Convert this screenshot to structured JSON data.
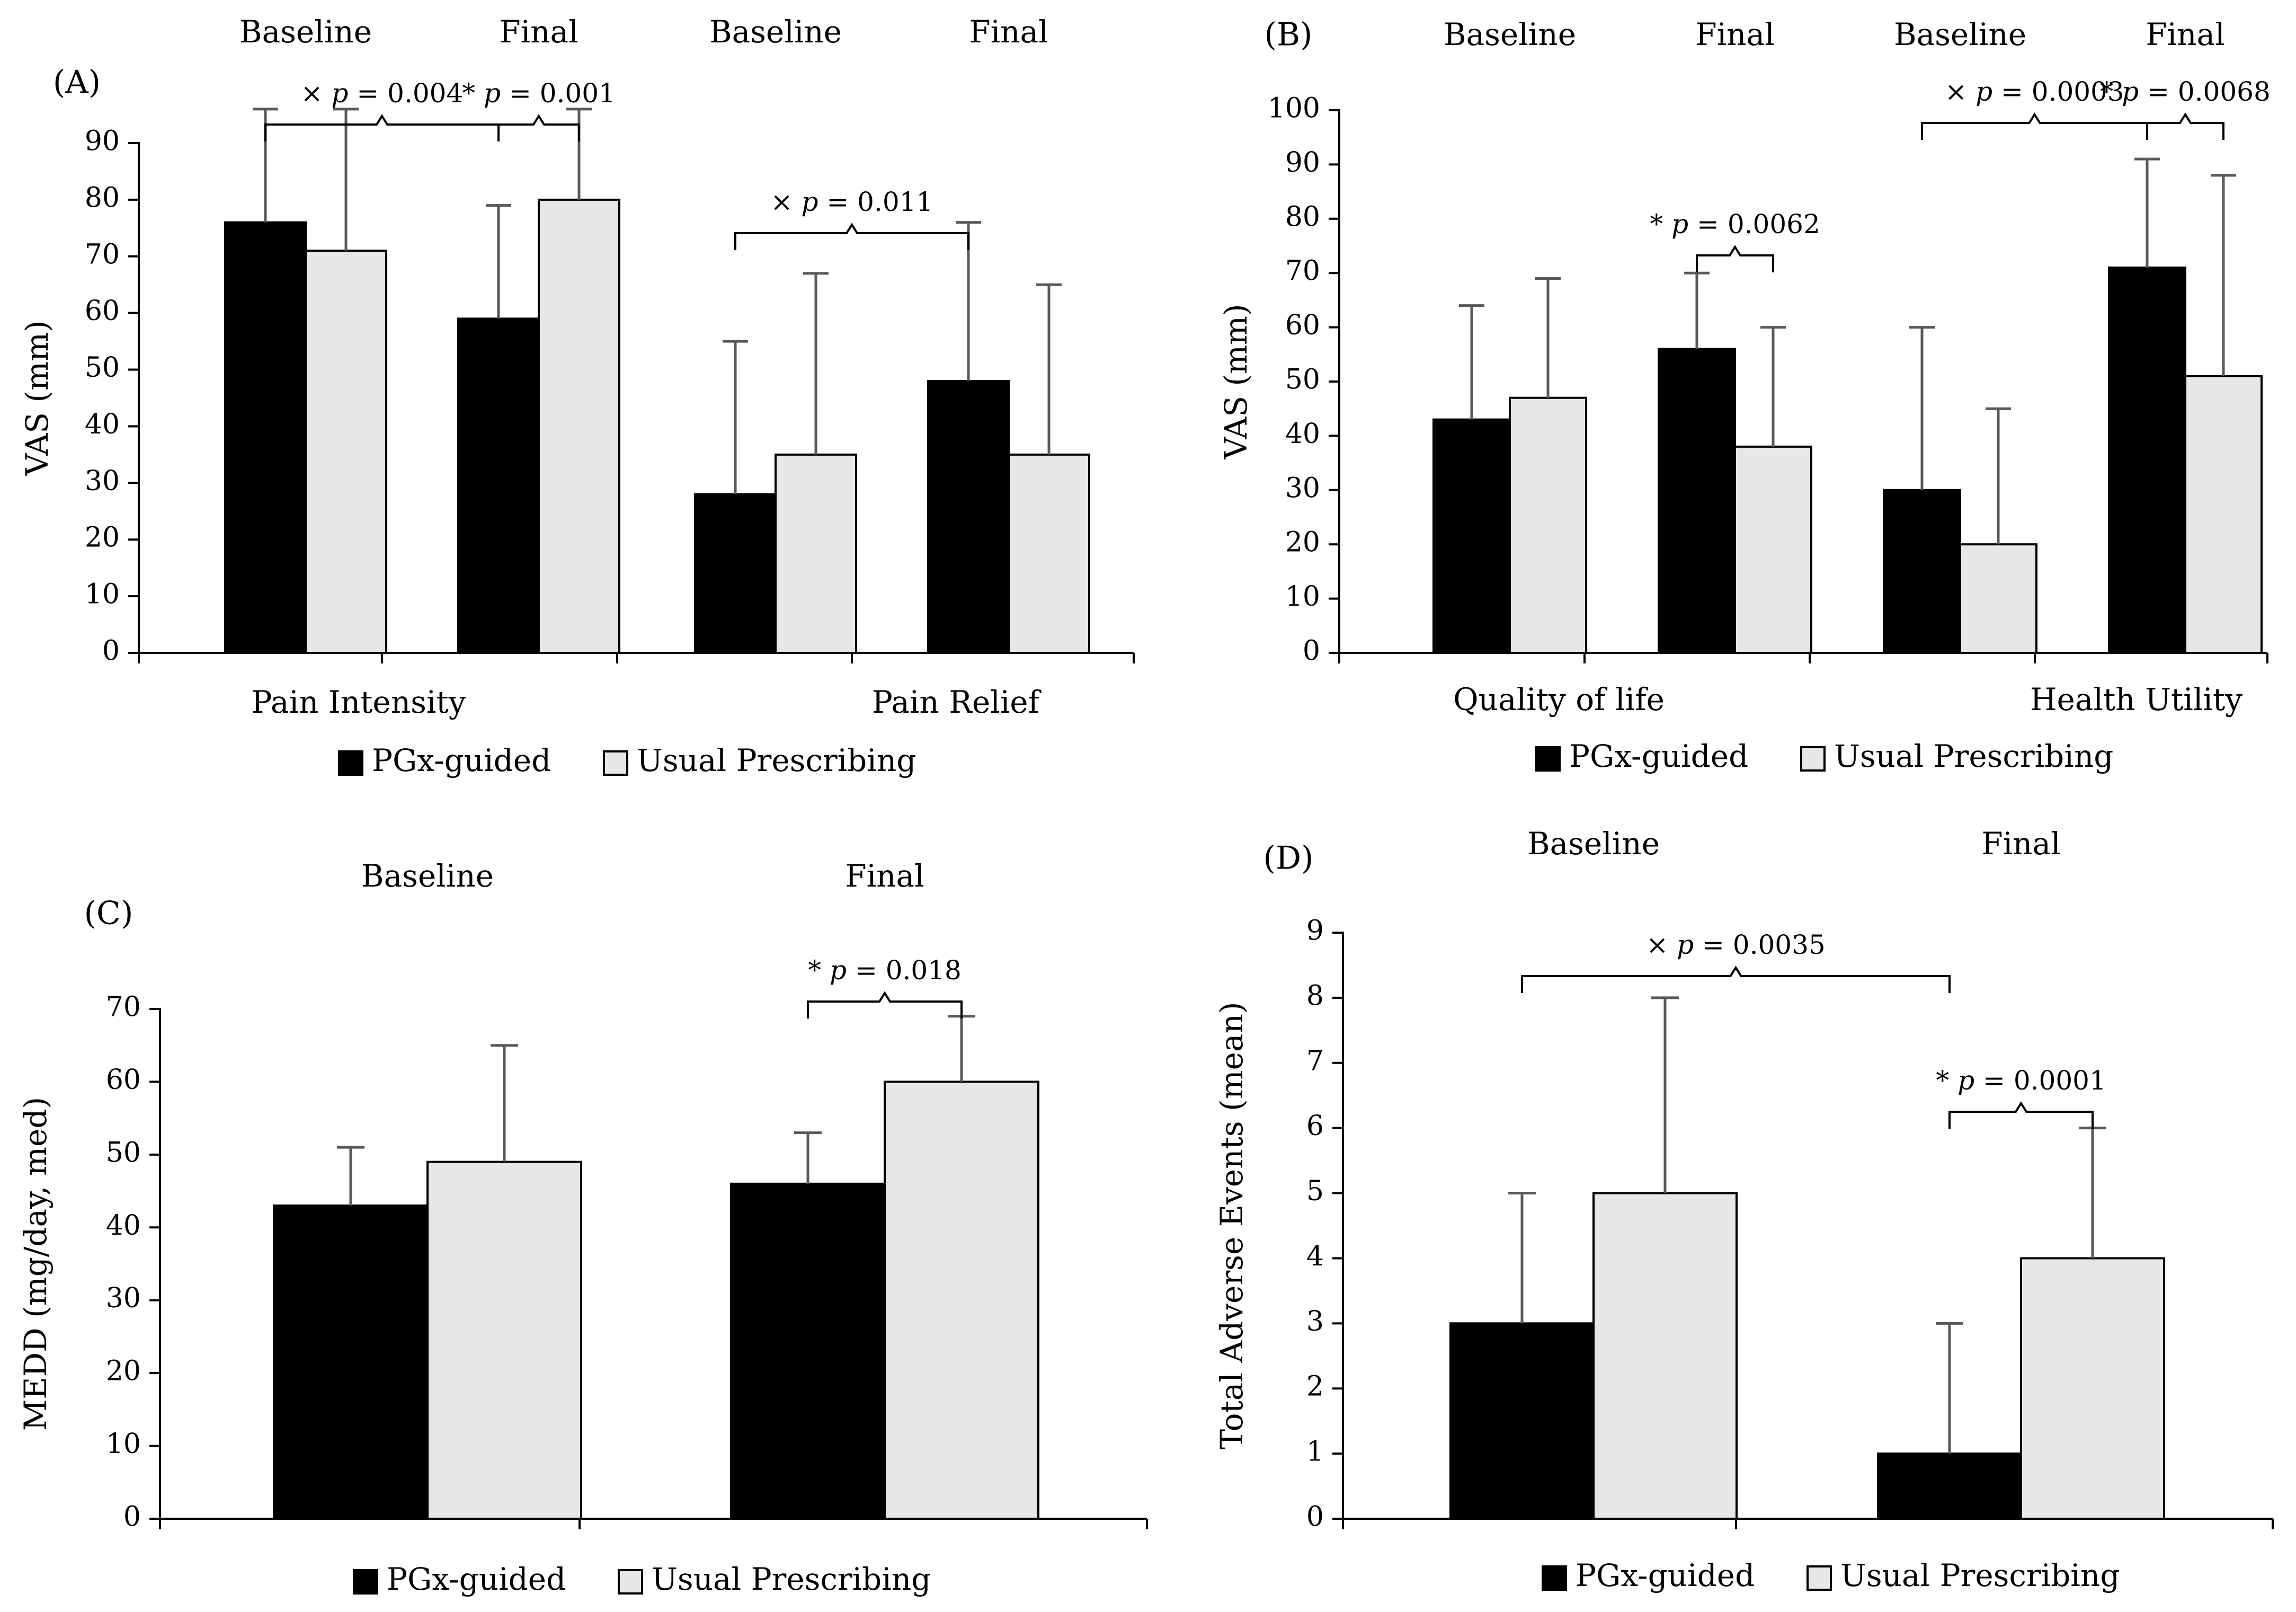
{
  "colors": {
    "pgx": "#000000",
    "usual": "#e7e7e7",
    "error_bar": "#595959",
    "axis": "#000000"
  },
  "chart_data": [
    {
      "id": "A",
      "type": "bar",
      "panel_label": "(A)",
      "ylabel": "VAS (mm)",
      "ylim": [
        0,
        90
      ],
      "yticks": [
        0,
        10,
        20,
        30,
        40,
        50,
        60,
        70,
        80,
        90
      ],
      "groups": [
        {
          "label": "Pain Intensity",
          "subgroups": [
            "Baseline",
            "Final"
          ]
        },
        {
          "label": "Pain Relief",
          "subgroups": [
            "Baseline",
            "Final"
          ]
        }
      ],
      "series": [
        {
          "name": "PGx-guided",
          "values": [
            76,
            59,
            28,
            48
          ],
          "error_upper": [
            96,
            79,
            55,
            76
          ]
        },
        {
          "name": "Usual Prescribing",
          "values": [
            71,
            80,
            35,
            35
          ],
          "error_upper": [
            96,
            96,
            67,
            65
          ]
        }
      ],
      "annotations": [
        {
          "marker": "×",
          "text": "p = 0.004",
          "from": [
            0,
            0
          ],
          "to": [
            1,
            0
          ]
        },
        {
          "marker": "*",
          "text": "p = 0.001",
          "from": [
            1,
            0
          ],
          "to": [
            1,
            1
          ]
        },
        {
          "marker": "×",
          "text": "p = 0.011",
          "from": [
            2,
            0
          ],
          "to": [
            3,
            0
          ]
        }
      ],
      "legend": [
        "PGx-guided",
        "Usual Prescribing"
      ]
    },
    {
      "id": "B",
      "type": "bar",
      "panel_label": "(B)",
      "ylabel": "VAS (mm)",
      "ylim": [
        0,
        100
      ],
      "yticks": [
        0,
        10,
        20,
        30,
        40,
        50,
        60,
        70,
        80,
        90,
        100
      ],
      "groups": [
        {
          "label": "Quality of life",
          "subgroups": [
            "Baseline",
            "Final"
          ]
        },
        {
          "label": "Health Utility",
          "subgroups": [
            "Baseline",
            "Final"
          ]
        }
      ],
      "series": [
        {
          "name": "PGx-guided",
          "values": [
            43,
            56,
            30,
            71
          ],
          "error_upper": [
            64,
            70,
            60,
            91
          ]
        },
        {
          "name": "Usual Prescribing",
          "values": [
            47,
            38,
            20,
            51
          ],
          "error_upper": [
            69,
            60,
            45,
            88
          ]
        }
      ],
      "annotations": [
        {
          "marker": "*",
          "text": "p = 0.0062",
          "from": [
            1,
            0
          ],
          "to": [
            1,
            1
          ]
        },
        {
          "marker": "×",
          "text": "p = 0.0003",
          "from": [
            2,
            0
          ],
          "to": [
            3,
            0
          ]
        },
        {
          "marker": "*",
          "text": "p = 0.0068",
          "from": [
            3,
            0
          ],
          "to": [
            3,
            1
          ]
        }
      ],
      "legend": [
        "PGx-guided",
        "Usual Prescribing"
      ]
    },
    {
      "id": "C",
      "type": "bar",
      "panel_label": "(C)",
      "ylabel": "MEDD (mg/day, med)",
      "ylim": [
        0,
        70
      ],
      "yticks": [
        0,
        10,
        20,
        30,
        40,
        50,
        60,
        70
      ],
      "categories": [
        "Baseline",
        "Final"
      ],
      "series": [
        {
          "name": "PGx-guided",
          "values": [
            43,
            46
          ],
          "error_upper": [
            51,
            53
          ]
        },
        {
          "name": "Usual Prescribing",
          "values": [
            49,
            60
          ],
          "error_upper": [
            65,
            69
          ]
        }
      ],
      "annotations": [
        {
          "marker": "*",
          "text": "p = 0.018",
          "from": [
            1,
            0
          ],
          "to": [
            1,
            1
          ]
        }
      ],
      "legend": [
        "PGx-guided",
        "Usual Prescribing"
      ]
    },
    {
      "id": "D",
      "type": "bar",
      "panel_label": "(D)",
      "ylabel": "Total Adverse Events (mean)",
      "ylim": [
        0,
        9
      ],
      "yticks": [
        0,
        1,
        2,
        3,
        4,
        5,
        6,
        7,
        8,
        9
      ],
      "categories": [
        "Baseline",
        "Final"
      ],
      "series": [
        {
          "name": "PGx-guided",
          "values": [
            3,
            1
          ],
          "error_upper": [
            5,
            3
          ]
        },
        {
          "name": "Usual Prescribing",
          "values": [
            5,
            4
          ],
          "error_upper": [
            8,
            6
          ]
        }
      ],
      "annotations": [
        {
          "marker": "×",
          "text": "p = 0.0035",
          "from": [
            0,
            0
          ],
          "to": [
            1,
            0
          ]
        },
        {
          "marker": "*",
          "text": "p = 0.0001",
          "from": [
            1,
            0
          ],
          "to": [
            1,
            1
          ]
        }
      ],
      "legend": [
        "PGx-guided",
        "Usual Prescribing"
      ]
    }
  ]
}
